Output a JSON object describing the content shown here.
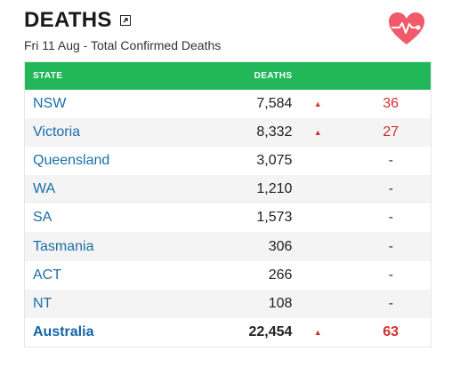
{
  "header": {
    "title": "DEATHS",
    "subtitle": "Fri 11 Aug - Total Confirmed Deaths"
  },
  "colors": {
    "header_bg": "#22b85a",
    "state_link": "#1a6ea8",
    "increase": "#d32f2f",
    "heart": "#f05a6a"
  },
  "icons": {
    "expand": "expand-icon",
    "heart": "heart-pulse-icon",
    "increase": "triangle-up-icon"
  },
  "table": {
    "columns": [
      "STATE",
      "DEATHS"
    ],
    "rows": [
      {
        "state": "NSW",
        "deaths": "7,584",
        "arrow": "▲",
        "change": "36"
      },
      {
        "state": "Victoria",
        "deaths": "8,332",
        "arrow": "▲",
        "change": "27"
      },
      {
        "state": "Queensland",
        "deaths": "3,075",
        "arrow": "",
        "change": "-"
      },
      {
        "state": "WA",
        "deaths": "1,210",
        "arrow": "",
        "change": "-"
      },
      {
        "state": "SA",
        "deaths": "1,573",
        "arrow": "",
        "change": "-"
      },
      {
        "state": "Tasmania",
        "deaths": "306",
        "arrow": "",
        "change": "-"
      },
      {
        "state": "ACT",
        "deaths": "266",
        "arrow": "",
        "change": "-"
      },
      {
        "state": "NT",
        "deaths": "108",
        "arrow": "",
        "change": "-"
      }
    ],
    "total": {
      "state": "Australia",
      "deaths": "22,454",
      "arrow": "▲",
      "change": "63"
    }
  }
}
